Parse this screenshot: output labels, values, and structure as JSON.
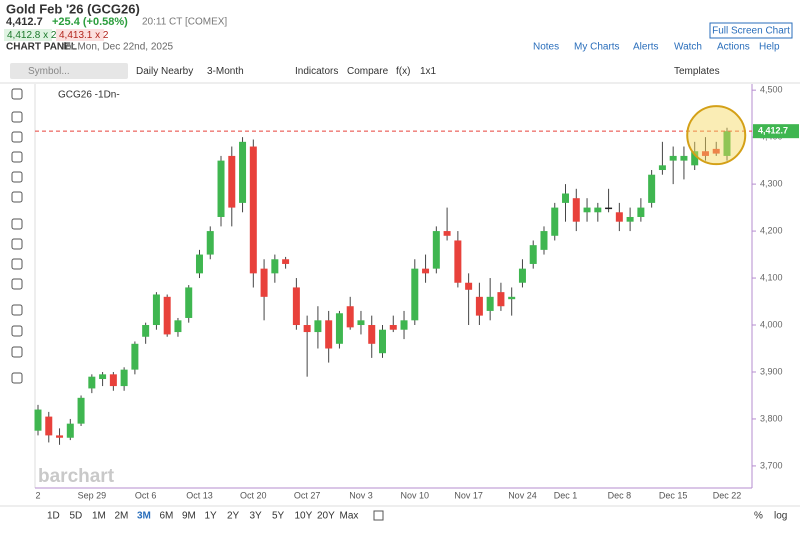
{
  "header": {
    "title": "Gold Feb '26 (GCG26)",
    "last": "4,412.7",
    "change": "+25.4 (+0.58%)",
    "time": "20:11 CT [COMEX]",
    "bid": "4,412.8 x 2",
    "ask": "4,413.1 x 2",
    "panel": "CHART PANEL",
    "panel_date": "for Mon, Dec 22nd, 2025",
    "fullscreen": "Full Screen Chart",
    "links": [
      "Notes",
      "My Charts",
      "Alerts",
      "Watch",
      "Actions",
      "Help"
    ]
  },
  "toolbar": {
    "symbol_placeholder": "Symbol...",
    "items": [
      "Daily Nearby",
      "3-Month",
      "Indicators",
      "Compare",
      "f(x)",
      "1x1"
    ],
    "templates": "Templates"
  },
  "footer": {
    "ranges": [
      "1D",
      "5D",
      "1M",
      "2M",
      "3M",
      "6M",
      "9M",
      "1Y",
      "2Y",
      "3Y",
      "5Y",
      "10Y",
      "20Y",
      "Max"
    ],
    "active_range": "3M",
    "right": [
      "%",
      "log"
    ]
  },
  "watermark": "barchart",
  "chart_data": {
    "type": "candlestick",
    "legend": "GCG26 -1Dn-",
    "categories": [
      "2",
      null,
      null,
      null,
      null,
      "Sep 29",
      null,
      null,
      null,
      null,
      "Oct 6",
      null,
      null,
      null,
      null,
      "Oct 13",
      null,
      null,
      null,
      null,
      "Oct 20",
      null,
      null,
      null,
      null,
      "Oct 27",
      null,
      null,
      null,
      null,
      "Nov 3",
      null,
      null,
      null,
      null,
      "Nov 10",
      null,
      null,
      null,
      null,
      "Nov 17",
      null,
      null,
      null,
      null,
      "Nov 24",
      null,
      null,
      null,
      "Dec 1",
      null,
      null,
      null,
      null,
      "Dec 8",
      null,
      null,
      null,
      null,
      "Dec 15",
      null,
      null,
      null,
      null,
      "Dec 22"
    ],
    "open": [
      3775,
      3805,
      3765,
      3760,
      3790,
      3865,
      3885,
      3895,
      3870,
      3905,
      3975,
      4000,
      4060,
      3985,
      4015,
      4110,
      4150,
      4230,
      4360,
      4260,
      4380,
      4120,
      4110,
      4140,
      4080,
      4000,
      3985,
      4010,
      3960,
      4040,
      4000,
      4000,
      3940,
      4000,
      3990,
      4010,
      4120,
      4120,
      4200,
      4180,
      4090,
      4060,
      4030,
      4070,
      4055,
      4090,
      4130,
      4160,
      4190,
      4260,
      4270,
      4240,
      4240,
      4250,
      4240,
      4220,
      4230,
      4260,
      4330,
      4350,
      4350,
      4340,
      4370,
      4375,
      4360
    ],
    "high": [
      3830,
      3815,
      3780,
      3800,
      3850,
      3895,
      3900,
      3900,
      3910,
      3965,
      4005,
      4070,
      4065,
      4015,
      4085,
      4160,
      4210,
      4360,
      4380,
      4400,
      4395,
      4140,
      4150,
      4145,
      4100,
      4020,
      4040,
      4030,
      4030,
      4060,
      4030,
      4020,
      4000,
      4020,
      4030,
      4140,
      4150,
      4210,
      4250,
      4200,
      4110,
      4090,
      4100,
      4090,
      4080,
      4140,
      4180,
      4210,
      4260,
      4300,
      4290,
      4270,
      4260,
      4290,
      4260,
      4250,
      4270,
      4330,
      4390,
      4380,
      4380,
      4390,
      4400,
      4390,
      4420
    ],
    "low": [
      3765,
      3750,
      3745,
      3755,
      3785,
      3855,
      3870,
      3860,
      3860,
      3895,
      3960,
      3990,
      3975,
      3975,
      4005,
      4100,
      4140,
      4210,
      4210,
      4240,
      4080,
      4010,
      4090,
      4120,
      3990,
      3890,
      3950,
      3920,
      3950,
      3990,
      3980,
      3930,
      3930,
      3985,
      3970,
      4000,
      4090,
      4110,
      4180,
      4080,
      4000,
      4000,
      4010,
      4030,
      4020,
      4080,
      4120,
      4150,
      4180,
      4220,
      4200,
      4220,
      4220,
      4240,
      4200,
      4200,
      4220,
      4250,
      4320,
      4300,
      4310,
      4330,
      4350,
      4360,
      4350
    ],
    "close": [
      3820,
      3765,
      3760,
      3790,
      3845,
      3890,
      3895,
      3870,
      3905,
      3960,
      4000,
      4065,
      3980,
      4010,
      4080,
      4150,
      4200,
      4350,
      4250,
      4390,
      4110,
      4060,
      4140,
      4130,
      4000,
      3985,
      4010,
      3950,
      4025,
      3995,
      4010,
      3960,
      3990,
      3990,
      4010,
      4120,
      4110,
      4200,
      4190,
      4090,
      4075,
      4020,
      4060,
      4040,
      4060,
      4120,
      4170,
      4200,
      4250,
      4280,
      4220,
      4250,
      4250,
      4250,
      4220,
      4230,
      4250,
      4320,
      4340,
      4360,
      4360,
      4370,
      4360,
      4365,
      4412.7
    ],
    "up_color": "#3fb650",
    "down_color": "#e8413b",
    "last_price": {
      "value": 4412.7,
      "label": "4,412.7"
    },
    "ylim": [
      3653,
      4511
    ],
    "yticks": [
      {
        "value": 3700,
        "label": "3,700"
      },
      {
        "value": 3800,
        "label": "3,800"
      },
      {
        "value": 3900,
        "label": "3,900"
      },
      {
        "value": 4000,
        "label": "4,000"
      },
      {
        "value": 4100,
        "label": "4,100"
      },
      {
        "value": 4200,
        "label": "4,200"
      },
      {
        "value": 4300,
        "label": "4,300"
      },
      {
        "value": 4400,
        "label": "4,400"
      },
      {
        "value": 4500,
        "label": "4,500"
      }
    ]
  }
}
